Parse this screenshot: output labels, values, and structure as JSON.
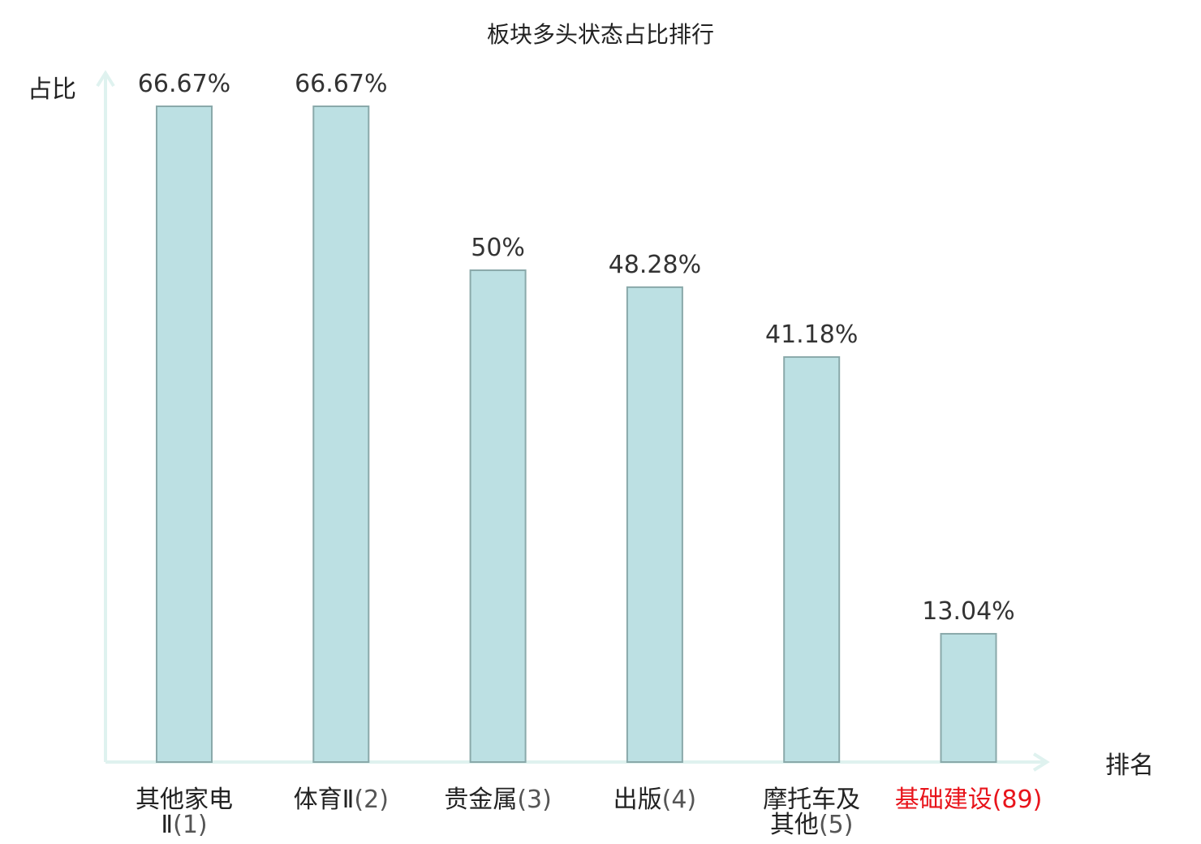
{
  "chart_data": {
    "type": "bar",
    "title": "板块多头状态占比排行",
    "xlabel": "排名",
    "ylabel": "占比",
    "ylim": [
      0,
      70
    ],
    "grid": false,
    "unit": "%",
    "colors": {
      "bar_fill": "#bce0e3",
      "bar_stroke": "#8aa9aa",
      "axis": "#dff2ef",
      "label": "#222222",
      "highlight": "#e8141b",
      "rank": "#555555"
    },
    "categories": [
      {
        "name": "其他家电",
        "name_line2": "Ⅱ",
        "rank": "(1)",
        "highlight": false
      },
      {
        "name": "体育Ⅱ",
        "rank": "(2)",
        "highlight": false
      },
      {
        "name": "贵金属",
        "rank": "(3)",
        "highlight": false
      },
      {
        "name": "出版",
        "rank": "(4)",
        "highlight": false
      },
      {
        "name": "摩托车及",
        "name_line2": "其他",
        "rank": "(5)",
        "highlight": false
      },
      {
        "name": "基础建设",
        "rank": "(89)",
        "highlight": true
      }
    ],
    "values": [
      66.67,
      66.67,
      50,
      48.28,
      41.18,
      13.04
    ],
    "value_labels": [
      "66.67%",
      "66.67%",
      "50%",
      "48.28%",
      "41.18%",
      "13.04%"
    ]
  }
}
